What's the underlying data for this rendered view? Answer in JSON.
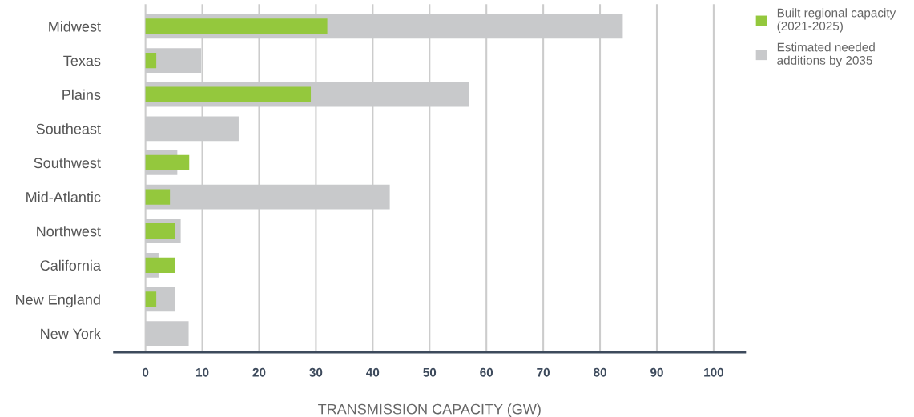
{
  "chart_data": {
    "type": "bar",
    "orientation": "horizontal",
    "xlabel": "TRANSMISSION CAPACITY (GW)",
    "categories": [
      "Midwest",
      "Texas",
      "Plains",
      "Southeast",
      "Southwest",
      "Mid-Atlantic",
      "Northwest",
      "California",
      "New England",
      "New York"
    ],
    "series": [
      {
        "name": "Built regional capacity\n(2021-2025)",
        "color": "#94c83d",
        "values": [
          32,
          1.9,
          29.1,
          null,
          7.7,
          4.3,
          5.2,
          5.2,
          1.9,
          null
        ]
      },
      {
        "name": "Estimated needed\nadditions by 2035",
        "color": "#c8c9cb",
        "values": [
          84,
          9.8,
          57,
          16.4,
          5.6,
          43,
          6.2,
          2.3,
          5.2,
          7.6
        ]
      }
    ],
    "xlim": [
      -5.5,
      105.5
    ],
    "xticks": [
      0,
      10,
      20,
      30,
      40,
      50,
      60,
      70,
      80,
      90,
      100
    ],
    "grid": "x",
    "legend": "top right"
  }
}
